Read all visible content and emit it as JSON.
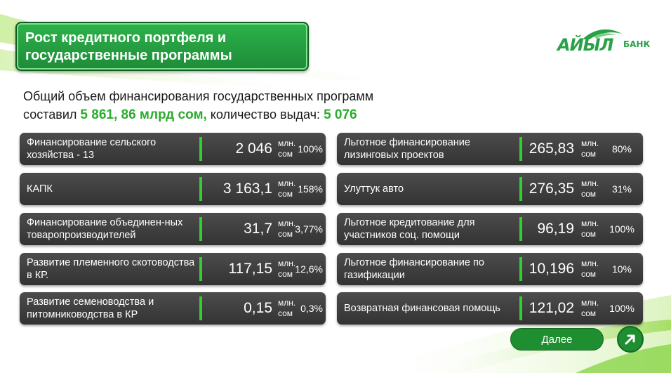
{
  "title": {
    "line1": "Рост кредитного портфеля и",
    "line2": "государственные программы"
  },
  "logo": {
    "main": "АЙЫЛ",
    "sub": "БАНК"
  },
  "summary": {
    "text1": "Общий объем финансирования государственных программ",
    "text2": "составил",
    "amount": "5 861, 86 млрд сом,",
    "text3": "количество выдач:",
    "count": "5 076"
  },
  "unit_line1": "млн.",
  "unit_line2": "сом",
  "left_items": [
    {
      "label": "Финансирование сельского хозяйства - 13",
      "value": "2 046",
      "pct": "100%"
    },
    {
      "label": "КАПК",
      "value": "3 163,1",
      "pct": "158%"
    },
    {
      "label": "Финансирование объединен-ных товаропроизводителей",
      "value": "31,7",
      "pct": "3,77%"
    },
    {
      "label": "Развитие племенного скотоводства в КР.",
      "value": "117,15",
      "pct": "12,6%"
    },
    {
      "label": "Развитие семеноводства и питомниководства в КР",
      "value": "0,15",
      "pct": "0,3%"
    }
  ],
  "right_items": [
    {
      "label": "Льготное финансирование лизинговых проектов",
      "value": "265,83",
      "pct": "80%"
    },
    {
      "label": "Улуттук авто",
      "value": "276,35",
      "pct": "31%"
    },
    {
      "label": "Льготное кредитование для участников соц. помощи",
      "value": "96,19",
      "pct": "100%"
    },
    {
      "label": "Льготное финансирование по газификации",
      "value": "10,196",
      "pct": "10%"
    },
    {
      "label": "Возвратная финансовая помощь",
      "value": "121,02",
      "pct": "100%"
    }
  ],
  "next_button": "Далее",
  "icons": {
    "arrow": "arrow-up-right-icon",
    "logo_swoosh": "logo-swoosh-icon"
  },
  "colors": {
    "accent": "#2cab2c",
    "title_bg": "#1e8c38",
    "card_bg": "#3c3c3c",
    "bar": "#2fd12f"
  }
}
